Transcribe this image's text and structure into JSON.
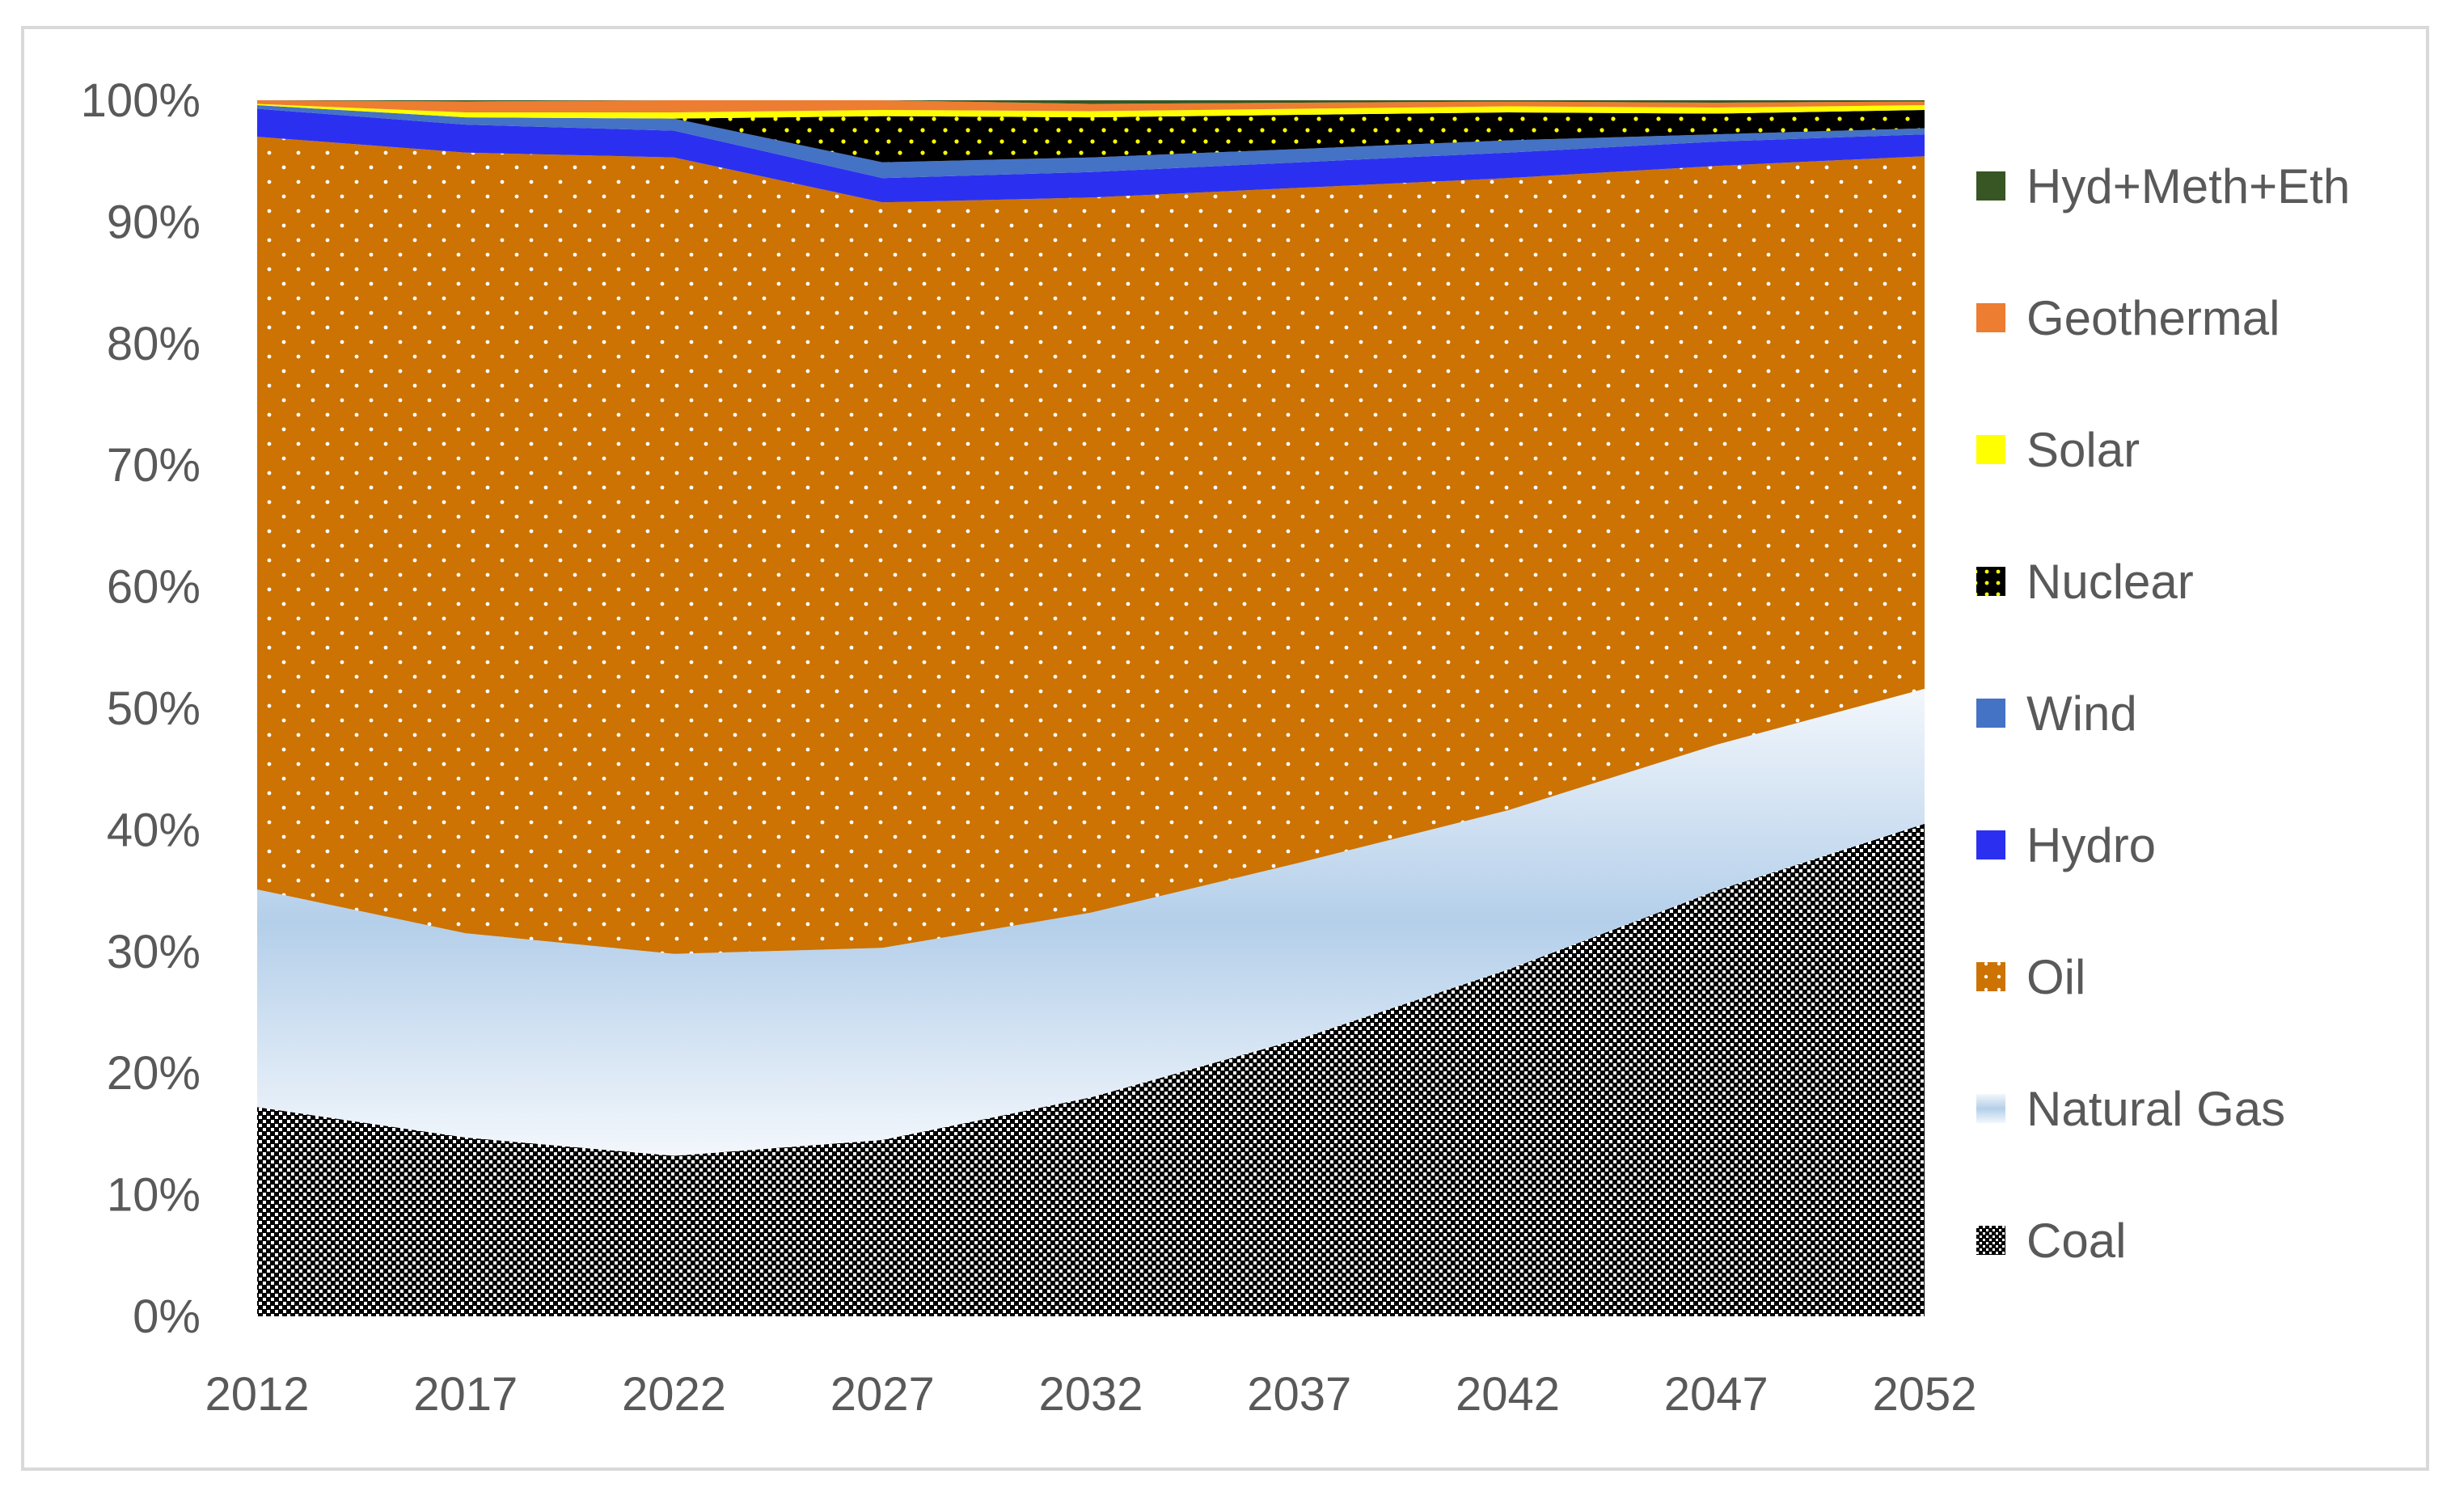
{
  "chart_data": {
    "type": "area",
    "stacked": true,
    "percent_stacked": true,
    "x": [
      "2012",
      "2017",
      "2022",
      "2027",
      "2032",
      "2037",
      "2042",
      "2047",
      "2052"
    ],
    "ylim": [
      0,
      100
    ],
    "yticks": [
      "0%",
      "10%",
      "20%",
      "30%",
      "40%",
      "50%",
      "60%",
      "70%",
      "80%",
      "90%",
      "100%"
    ],
    "grid": false,
    "legend_position": "right",
    "series": [
      {
        "name": "Coal",
        "color": "#000000",
        "pattern": "checker-white",
        "values": [
          17.2,
          14.7,
          13.2,
          14.5,
          18.0,
          22.8,
          28.5,
          35.0,
          40.5
        ]
      },
      {
        "name": "Natural Gas",
        "color": "#b4cfea",
        "pattern": "gradient",
        "values": [
          17.9,
          16.8,
          16.6,
          15.8,
          15.2,
          14.5,
          13.1,
          12.0,
          11.1
        ]
      },
      {
        "name": "Oil",
        "color": "#cc7303",
        "pattern": "dots-white",
        "values": [
          61.9,
          64.2,
          65.5,
          61.3,
          58.8,
          55.5,
          52.0,
          47.6,
          43.8
        ]
      },
      {
        "name": "Hydro",
        "color": "#2b30f0",
        "pattern": "solid",
        "values": [
          2.3,
          2.3,
          2.2,
          2.0,
          2.1,
          2.1,
          2.1,
          2.0,
          1.8
        ]
      },
      {
        "name": "Wind",
        "color": "#4472c4",
        "pattern": "solid",
        "values": [
          0.3,
          0.6,
          1.0,
          1.3,
          1.2,
          1.1,
          1.0,
          0.6,
          0.5
        ]
      },
      {
        "name": "Nuclear",
        "color": "#000000",
        "pattern": "dots-yellow",
        "values": [
          0.0,
          0.0,
          0.0,
          3.8,
          3.3,
          2.8,
          2.3,
          1.7,
          1.5
        ]
      },
      {
        "name": "Solar",
        "color": "#ffff00",
        "pattern": "solid",
        "values": [
          0.1,
          0.4,
          0.5,
          0.5,
          0.5,
          0.5,
          0.5,
          0.5,
          0.4
        ]
      },
      {
        "name": "Geothermal",
        "color": "#ed7d31",
        "pattern": "solid",
        "values": [
          0.3,
          0.9,
          1.0,
          0.8,
          0.6,
          0.5,
          0.4,
          0.4,
          0.3
        ]
      },
      {
        "name": "Hyd+Meth+Eth",
        "color": "#375623",
        "pattern": "solid",
        "values": [
          0.0,
          0.1,
          0.0,
          0.0,
          0.3,
          0.2,
          0.1,
          0.2,
          0.1
        ]
      }
    ]
  }
}
